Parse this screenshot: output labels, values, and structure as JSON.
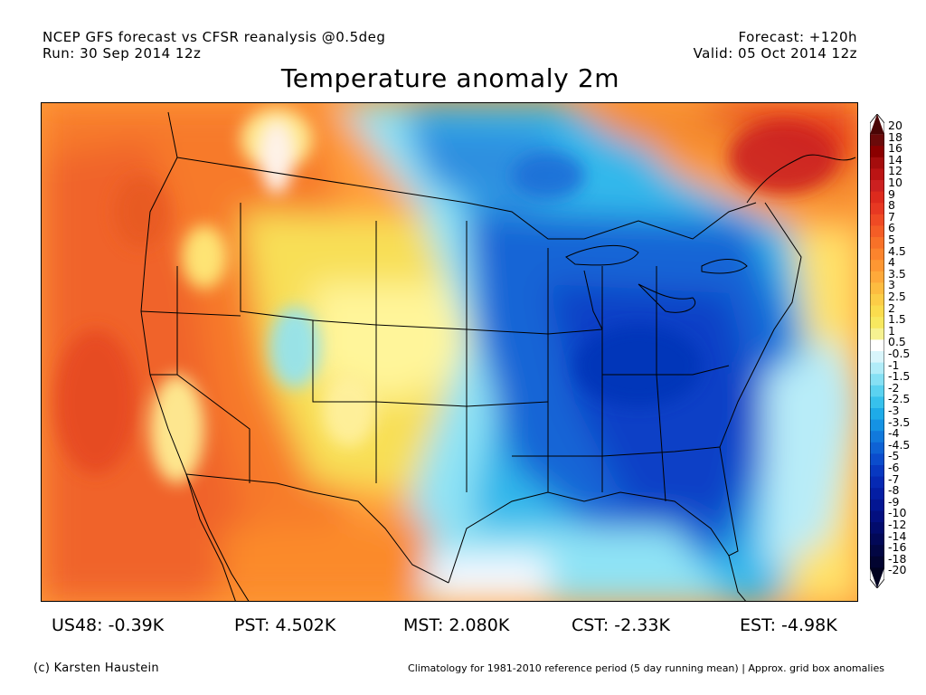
{
  "header": {
    "line1_left": "NCEP GFS forecast vs CFSR reanalysis @0.5deg",
    "line2_left": "Run: 30 Sep 2014 12z",
    "line1_right": "Forecast: +120h",
    "line2_right": "Valid: 05 Oct 2014 12z"
  },
  "title": "Temperature anomaly 2m",
  "colorbar": {
    "labels": [
      "20",
      "18",
      "16",
      "14",
      "12",
      "10",
      "9",
      "8",
      "7",
      "6",
      "5",
      "4.5",
      "4",
      "3.5",
      "3",
      "2.5",
      "2",
      "1.5",
      "1",
      "0.5",
      "-0.5",
      "-1",
      "-1.5",
      "-2",
      "-2.5",
      "-3",
      "-3.5",
      "-4",
      "-4.5",
      "-5",
      "-6",
      "-7",
      "-8",
      "-9",
      "-10",
      "-12",
      "-14",
      "-16",
      "-18",
      "-20"
    ],
    "colors": [
      "#4a0505",
      "#6b0a0a",
      "#8b0000",
      "#a50d0d",
      "#bb1414",
      "#cc2020",
      "#dd2a1d",
      "#e73822",
      "#ef4a24",
      "#f45d26",
      "#f87128",
      "#fb842d",
      "#fd9733",
      "#fea93a",
      "#fdbc40",
      "#fccd47",
      "#fadc4e",
      "#f7e85f",
      "#f6f291",
      "#ffffff",
      "#d9f5fb",
      "#b1ecf8",
      "#86e0f4",
      "#5bd2f0",
      "#37c1ec",
      "#1eabe8",
      "#1592e3",
      "#1179dc",
      "#0e62d4",
      "#0b4ccc",
      "#0838c0",
      "#0629b3",
      "#041ea4",
      "#031693",
      "#030f80",
      "#020b6c",
      "#020857",
      "#020643",
      "#020430",
      "#01021f"
    ]
  },
  "stats": [
    {
      "label": "US48:",
      "value": "-0.39K"
    },
    {
      "label": "PST:",
      "value": "4.502K"
    },
    {
      "label": "MST:",
      "value": "2.080K"
    },
    {
      "label": "CST:",
      "value": "-2.33K"
    },
    {
      "label": "EST:",
      "value": "-4.98K"
    }
  ],
  "footer": {
    "credit": "(c) Karsten Haustein",
    "note": "Climatology for 1981-2010 reference period (5 day running mean) | Approx. grid box anomalies"
  }
}
